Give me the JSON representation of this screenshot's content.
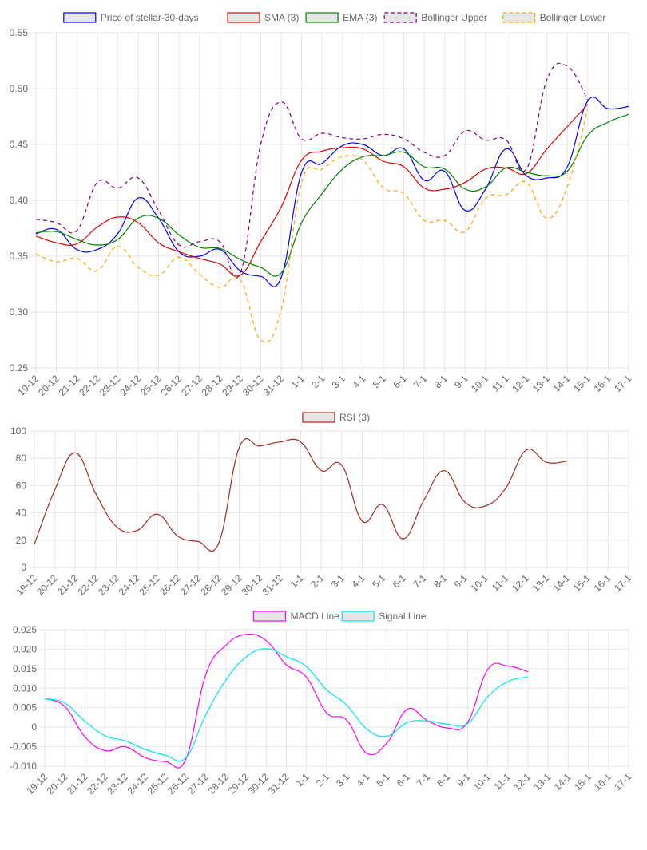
{
  "chart_data": [
    {
      "type": "line",
      "legend_position": "top",
      "grid": true,
      "categories": [
        "19-12",
        "20-12",
        "21-12",
        "22-12",
        "23-12",
        "24-12",
        "25-12",
        "26-12",
        "27-12",
        "28-12",
        "29-12",
        "30-12",
        "31-12",
        "1-1",
        "2-1",
        "3-1",
        "4-1",
        "5-1",
        "6-1",
        "7-1",
        "8-1",
        "9-1",
        "10-1",
        "11-1",
        "12-1",
        "13-1",
        "14-1",
        "15-1",
        "16-1",
        "17-1"
      ],
      "ylim": [
        0.25,
        0.55
      ],
      "yticks": [
        "0.25",
        "0.30",
        "0.35",
        "0.40",
        "0.45",
        "0.50",
        "0.55"
      ],
      "series": [
        {
          "name": "Price of stellar-30-days",
          "color": "#0000ff",
          "dashed": false,
          "values": [
            0.37,
            0.374,
            0.356,
            0.356,
            0.37,
            0.402,
            0.384,
            0.354,
            0.35,
            0.356,
            0.337,
            0.332,
            0.331,
            0.425,
            0.433,
            0.449,
            0.45,
            0.44,
            0.446,
            0.418,
            0.426,
            0.391,
            0.41,
            0.446,
            0.422,
            0.42,
            0.43,
            0.489,
            0.482,
            0.484
          ]
        },
        {
          "name": "SMA (3)",
          "color": "#e00000",
          "dashed": false,
          "values": [
            0.368,
            0.362,
            0.361,
            0.376,
            0.385,
            0.38,
            0.362,
            0.354,
            0.348,
            0.343,
            0.333,
            0.363,
            0.394,
            0.436,
            0.444,
            0.447,
            0.446,
            0.435,
            0.43,
            0.411,
            0.41,
            0.416,
            0.428,
            0.429,
            0.424,
            0.446,
            0.466,
            0.486,
            null,
            null
          ]
        },
        {
          "name": "EMA (3)",
          "color": "#008000",
          "dashed": false,
          "values": [
            0.371,
            0.372,
            0.365,
            0.36,
            0.365,
            0.384,
            0.384,
            0.369,
            0.358,
            0.357,
            0.347,
            0.34,
            0.335,
            0.38,
            0.406,
            0.428,
            0.439,
            0.44,
            0.443,
            0.43,
            0.428,
            0.41,
            0.412,
            0.429,
            0.425,
            0.422,
            0.426,
            0.458,
            0.47,
            0.477
          ]
        },
        {
          "name": "Bollinger Upper",
          "color": "#800080",
          "dashed": true,
          "values": [
            0.383,
            0.38,
            0.373,
            0.416,
            0.411,
            0.42,
            0.391,
            0.36,
            0.363,
            0.363,
            0.335,
            0.45,
            0.488,
            0.455,
            0.46,
            0.456,
            0.455,
            0.459,
            0.455,
            0.443,
            0.44,
            0.462,
            0.454,
            0.454,
            0.428,
            0.508,
            0.52,
            0.49,
            null,
            null
          ]
        },
        {
          "name": "Bollinger Lower",
          "color": "#ffa500",
          "dashed": true,
          "values": [
            0.352,
            0.345,
            0.348,
            0.337,
            0.359,
            0.34,
            0.333,
            0.349,
            0.334,
            0.322,
            0.329,
            0.275,
            0.302,
            0.416,
            0.428,
            0.439,
            0.436,
            0.411,
            0.406,
            0.382,
            0.382,
            0.372,
            0.402,
            0.405,
            0.416,
            0.384,
            0.412,
            0.482,
            null,
            null
          ]
        }
      ]
    },
    {
      "type": "line",
      "legend_position": "top",
      "grid": true,
      "categories": [
        "19-12",
        "20-12",
        "21-12",
        "22-12",
        "23-12",
        "24-12",
        "25-12",
        "26-12",
        "27-12",
        "28-12",
        "29-12",
        "30-12",
        "31-12",
        "1-1",
        "2-1",
        "3-1",
        "4-1",
        "5-1",
        "6-1",
        "7-1",
        "8-1",
        "9-1",
        "10-1",
        "11-1",
        "12-1",
        "13-1",
        "14-1",
        "15-1",
        "16-1",
        "17-1"
      ],
      "ylim": [
        0,
        100
      ],
      "yticks": [
        "0",
        "20",
        "40",
        "60",
        "80",
        "100"
      ],
      "series": [
        {
          "name": "RSI (3)",
          "color": "#a52a2a",
          "dashed": false,
          "values": [
            17,
            57,
            84,
            54,
            30,
            27,
            39,
            23,
            19,
            18,
            88,
            89,
            92,
            92,
            71,
            75,
            34,
            46,
            21,
            49,
            71,
            48,
            45,
            58,
            86,
            77,
            78,
            null,
            null,
            null
          ]
        }
      ]
    },
    {
      "type": "line",
      "legend_position": "top",
      "grid": true,
      "categories": [
        "19-12",
        "20-12",
        "21-12",
        "22-12",
        "23-12",
        "24-12",
        "25-12",
        "26-12",
        "27-12",
        "28-12",
        "29-12",
        "30-12",
        "31-12",
        "1-1",
        "2-1",
        "3-1",
        "4-1",
        "5-1",
        "6-1",
        "7-1",
        "8-1",
        "9-1",
        "10-1",
        "11-1",
        "12-1",
        "13-1",
        "14-1",
        "15-1",
        "16-1",
        "17-1"
      ],
      "ylim": [
        -0.01,
        0.025
      ],
      "yticks": [
        "-0.010",
        "-0.005",
        "0",
        "0.005",
        "0.010",
        "0.015",
        "0.020",
        "0.025"
      ],
      "series": [
        {
          "name": "MACD Line",
          "color": "#ff00ff",
          "dashed": false,
          "values": [
            0.0073,
            0.0053,
            -0.0025,
            -0.006,
            -0.005,
            -0.0078,
            -0.0088,
            -0.0083,
            0.0135,
            0.021,
            0.0238,
            0.0222,
            0.016,
            0.0128,
            0.0037,
            0.0018,
            -0.0067,
            -0.004,
            0.0046,
            0.0017,
            -0.0002,
            0.0012,
            0.0148,
            0.0157,
            0.0142,
            null,
            null,
            null,
            null,
            null
          ]
        },
        {
          "name": "Signal Line",
          "color": "#00e5ee",
          "dashed": false,
          "values": [
            0.0073,
            0.0062,
            0.0015,
            -0.0022,
            -0.0035,
            -0.0057,
            -0.0072,
            -0.0079,
            0.0032,
            0.0121,
            0.018,
            0.0201,
            0.0181,
            0.0155,
            0.0096,
            0.0057,
            -0.0005,
            -0.0023,
            0.0012,
            0.0016,
            0.0008,
            0.0009,
            0.0078,
            0.0117,
            0.0129,
            null,
            null,
            null,
            null,
            null
          ]
        }
      ]
    }
  ]
}
